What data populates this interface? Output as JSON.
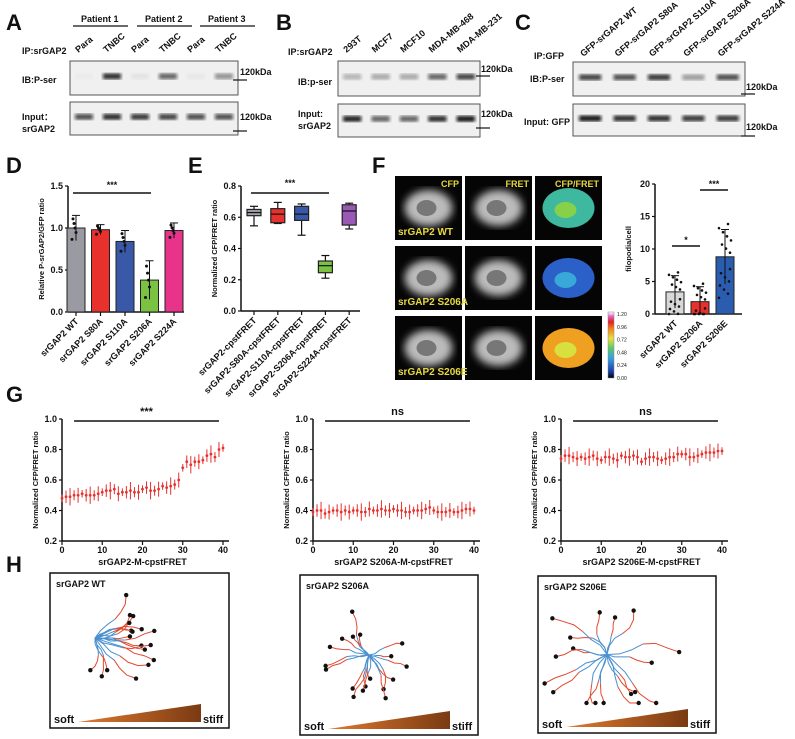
{
  "panels": {
    "A": "A",
    "B": "B",
    "C": "C",
    "D": "D",
    "E": "E",
    "F": "F",
    "G": "G",
    "H": "H"
  },
  "blotA": {
    "groups": [
      "Patient 1",
      "Patient 2",
      "Patient 3"
    ],
    "lanes": [
      "Para",
      "TNBC",
      "Para",
      "TNBC",
      "Para",
      "TNBC"
    ],
    "ip": "IP:srGAP2",
    "ib": "IB:P-ser",
    "input1": "Input：",
    "input2": "srGAP2",
    "mw": "120kDa",
    "ib_intensity": [
      0.02,
      0.85,
      0.05,
      0.6,
      0.03,
      0.4
    ],
    "input_intensity": [
      0.7,
      0.85,
      0.8,
      0.75,
      0.7,
      0.7
    ]
  },
  "blotB": {
    "lanes": [
      "293T",
      "MCF7",
      "MCF10",
      "MDA-MB-468",
      "MDA-MB-231"
    ],
    "ip": "IP:srGAP2",
    "ib": "IB:p-ser",
    "input1": "Input:",
    "input2": "srGAP2",
    "mw": "120kDa",
    "ib_intensity": [
      0.25,
      0.3,
      0.3,
      0.6,
      0.75
    ],
    "input_intensity": [
      0.9,
      0.6,
      0.6,
      0.85,
      0.95
    ]
  },
  "blotC": {
    "lanes": [
      "GFP-srGAP2 WT",
      "GFP-srGAP2 S80A",
      "GFP-srGAP2 S110A",
      "GFP-srGAP2 S206A",
      "GFP-srGAP2 S224A"
    ],
    "ip": "IP:GFP",
    "ib": "IB:P-ser",
    "input": "Input: GFP",
    "mw": "120kDa",
    "ib_intensity": [
      0.75,
      0.7,
      0.8,
      0.35,
      0.7
    ],
    "input_intensity": [
      0.95,
      0.85,
      0.85,
      0.8,
      0.8
    ]
  },
  "chart_data": [
    {
      "id": "D",
      "type": "bar",
      "categories": [
        "srGAP2 WT",
        "srGAP2 S80A",
        "srGAP2 S110A",
        "srGAP2 S206A",
        "srGAP2 S224A"
      ],
      "values": [
        1.0,
        0.98,
        0.84,
        0.38,
        0.97
      ],
      "sd": [
        0.15,
        0.06,
        0.13,
        0.23,
        0.09
      ],
      "colors": [
        "#9a9aa2",
        "#e8302c",
        "#3a58a8",
        "#7cc242",
        "#e8338a"
      ],
      "ylabel": "Relative P-srGAP2/GFP ratio",
      "ylim": [
        0,
        1.5
      ],
      "yticks": [
        "0.0",
        "0.5",
        "1.0",
        "1.5"
      ],
      "significance": "***"
    },
    {
      "id": "E",
      "type": "box",
      "categories": [
        "srGAP2-cpstFRET",
        "srGAP2-S80A-cpstFRET",
        "srGAP2-S110A-cpstFRET",
        "srGAP2-S206A-cpstFRET",
        "srGAP2-S224A-cpstFRET"
      ],
      "boxes": [
        [
          0.545,
          0.61,
          0.63,
          0.65,
          0.67
        ],
        [
          0.56,
          0.565,
          0.62,
          0.655,
          0.695
        ],
        [
          0.485,
          0.58,
          0.62,
          0.67,
          0.685
        ],
        [
          0.21,
          0.245,
          0.29,
          0.32,
          0.355
        ],
        [
          0.525,
          0.55,
          0.64,
          0.68,
          0.69
        ]
      ],
      "colors": [
        "#a0a0a8",
        "#e8302c",
        "#3a58a8",
        "#7cc242",
        "#9b59b6"
      ],
      "ylabel": "Normalized CFP/FRET ratio",
      "ylim": [
        0,
        0.8
      ],
      "yticks": [
        "0.0",
        "0.2",
        "0.4",
        "0.6",
        "0.8"
      ],
      "significance": "***"
    },
    {
      "id": "F",
      "type": "bar",
      "categories": [
        "srGAP2 WT",
        "srGAP2 S206A",
        "srGAP2 S206E"
      ],
      "values": [
        3.4,
        1.9,
        8.8
      ],
      "sd": [
        2.5,
        2.3,
        4.2
      ],
      "colors": [
        "#d8d8d8",
        "#e8302c",
        "#2a5db0"
      ],
      "ylabel": "filopodia/cell",
      "ylim": [
        0,
        20
      ],
      "yticks": [
        "0",
        "5",
        "10",
        "15",
        "20"
      ],
      "significance": [
        "*",
        "***"
      ]
    },
    {
      "id": "G1",
      "type": "line",
      "xlabel": "srGAP2-M-cpstFRET",
      "ylabel": "Normalized CFP/FRET ratio",
      "xlim": [
        0,
        40
      ],
      "ylim": [
        0.2,
        1.0
      ],
      "xticks": [
        "0",
        "10",
        "20",
        "30",
        "40"
      ],
      "yticks": [
        "0.2",
        "0.4",
        "0.6",
        "0.8",
        "1.0"
      ],
      "significance": "***",
      "color": "#e8302c",
      "y": [
        0.48,
        0.49,
        0.49,
        0.5,
        0.5,
        0.51,
        0.5,
        0.5,
        0.5,
        0.51,
        0.52,
        0.53,
        0.53,
        0.54,
        0.51,
        0.52,
        0.52,
        0.53,
        0.52,
        0.52,
        0.54,
        0.55,
        0.53,
        0.53,
        0.54,
        0.56,
        0.55,
        0.56,
        0.57,
        0.6,
        0.68,
        0.72,
        0.7,
        0.72,
        0.72,
        0.73,
        0.76,
        0.77,
        0.75,
        0.8,
        0.81
      ]
    },
    {
      "id": "G2",
      "type": "line",
      "xlabel": "srGAP2 S206A-M-cpstFRET",
      "ylabel": "Normalized CFP/FRET ratio",
      "xlim": [
        0,
        40
      ],
      "ylim": [
        0.2,
        1.0
      ],
      "xticks": [
        "0",
        "10",
        "20",
        "30",
        "40"
      ],
      "yticks": [
        "0.2",
        "0.4",
        "0.6",
        "0.8",
        "1.0"
      ],
      "significance": "ns",
      "color": "#e8302c",
      "y": [
        0.39,
        0.4,
        0.4,
        0.38,
        0.39,
        0.4,
        0.4,
        0.39,
        0.4,
        0.39,
        0.4,
        0.4,
        0.39,
        0.39,
        0.41,
        0.4,
        0.4,
        0.41,
        0.4,
        0.4,
        0.41,
        0.4,
        0.4,
        0.39,
        0.39,
        0.4,
        0.4,
        0.4,
        0.41,
        0.42,
        0.4,
        0.39,
        0.39,
        0.39,
        0.4,
        0.39,
        0.39,
        0.4,
        0.41,
        0.41,
        0.4
      ]
    },
    {
      "id": "G3",
      "type": "line",
      "xlabel": "srGAP2 S206E-M-cpstFRET",
      "ylabel": "Normalized CFP/FRET ratio",
      "xlim": [
        0,
        40
      ],
      "ylim": [
        0.2,
        1.0
      ],
      "xticks": [
        "0",
        "10",
        "20",
        "30",
        "40"
      ],
      "yticks": [
        "0.2",
        "0.4",
        "0.6",
        "0.8",
        "1.0"
      ],
      "significance": "ns",
      "color": "#e8302c",
      "y": [
        0.74,
        0.76,
        0.76,
        0.75,
        0.74,
        0.75,
        0.74,
        0.75,
        0.76,
        0.74,
        0.73,
        0.75,
        0.75,
        0.74,
        0.73,
        0.76,
        0.75,
        0.75,
        0.76,
        0.75,
        0.72,
        0.74,
        0.75,
        0.75,
        0.74,
        0.73,
        0.74,
        0.75,
        0.75,
        0.77,
        0.77,
        0.77,
        0.75,
        0.75,
        0.76,
        0.77,
        0.78,
        0.78,
        0.78,
        0.79,
        0.79
      ]
    }
  ],
  "panelF": {
    "channels": [
      "CFP",
      "FRET",
      "CFP/FRET"
    ],
    "rows": [
      "srGAP2 WT",
      "srGAP2 S206A",
      "srGAP2 S206E"
    ],
    "colorbar": [
      "1.20",
      "0.96",
      "0.72",
      "0.48",
      "0.24",
      "0.00"
    ]
  },
  "panelH": {
    "titles": [
      "srGAP2 WT",
      "srGAP2 S206A",
      "srGAP2 S206E"
    ],
    "soft": "soft",
    "stiff": "stiff"
  }
}
